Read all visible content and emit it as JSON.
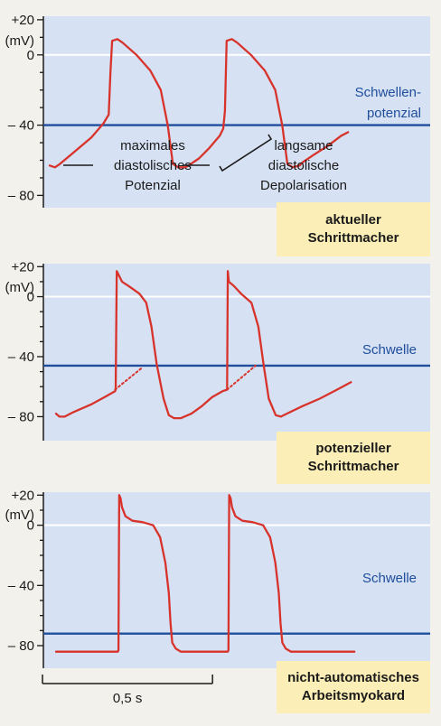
{
  "colors": {
    "panel_bg": "#d6e1f4",
    "threshold_line": "#1f4e9c",
    "trace": "#d8332b",
    "label_box": "#fbeeb6"
  },
  "chart_data": [
    {
      "type": "line",
      "unit_label": "(mV)",
      "yticks": [
        {
          "value": 20,
          "label": "+20"
        },
        {
          "value": 0,
          "label": "0"
        },
        {
          "value": -40,
          "label": "– 40"
        },
        {
          "value": -80,
          "label": "– 80"
        }
      ],
      "ylim": [
        -87,
        22
      ],
      "threshold": {
        "value": -40,
        "label_lines": [
          "Schwellen-",
          "potenzial"
        ]
      },
      "annotations": [
        {
          "text_lines": [
            "maximales",
            "diastolisches",
            "Potenzial"
          ]
        },
        {
          "text_lines": [
            "langsame",
            "diastolische",
            "Depolarisation"
          ]
        }
      ],
      "label_box": [
        "aktueller",
        "Schrittmacher"
      ],
      "series": [
        {
          "x": [
            0.0,
            0.015,
            0.03,
            0.06,
            0.12,
            0.155,
            0.17,
            0.175,
            0.18,
            0.195,
            0.21,
            0.25,
            0.29,
            0.32,
            0.34,
            0.355,
            0.37,
            0.39,
            0.4,
            0.43,
            0.46,
            0.49,
            0.5,
            0.505,
            0.51,
            0.525,
            0.54,
            0.58,
            0.62,
            0.65,
            0.67,
            0.685,
            0.7,
            0.72,
            0.73,
            0.76,
            0.8,
            0.84,
            0.86
          ],
          "y": [
            -63,
            -64,
            -62,
            -57,
            -47,
            -39,
            -34,
            -10,
            8,
            9,
            7,
            0,
            -9,
            -20,
            -40,
            -62,
            -64,
            -64,
            -63,
            -59,
            -53,
            -46,
            -42,
            -32,
            8,
            9,
            7,
            0,
            -9,
            -20,
            -40,
            -62,
            -64,
            -63,
            -61,
            -57,
            -52,
            -46,
            -44
          ]
        }
      ]
    },
    {
      "type": "line",
      "unit_label": "(mV)",
      "yticks": [
        {
          "value": 20,
          "label": "+20"
        },
        {
          "value": 0,
          "label": "0"
        },
        {
          "value": -40,
          "label": "– 40"
        },
        {
          "value": -80,
          "label": "– 80"
        }
      ],
      "ylim": [
        -96,
        22
      ],
      "threshold": {
        "value": -46,
        "label_lines": [
          "Schwelle"
        ]
      },
      "label_box": [
        "potenzieller",
        "Schrittmacher"
      ],
      "series": [
        {
          "x": [
            0.0,
            0.01,
            0.025,
            0.05,
            0.1,
            0.14,
            0.17,
            0.172,
            0.175,
            0.19,
            0.21,
            0.24,
            0.26,
            0.275,
            0.29,
            0.31,
            0.325,
            0.34,
            0.36,
            0.39,
            0.42,
            0.45,
            0.48,
            0.493,
            0.495,
            0.498,
            0.513,
            0.533,
            0.563,
            0.583,
            0.598,
            0.613,
            0.633,
            0.648,
            0.665,
            0.71,
            0.76,
            0.81,
            0.85
          ],
          "y": [
            -78,
            -80,
            -80,
            -77,
            -72,
            -67,
            -63,
            -62,
            17,
            10,
            7,
            2,
            -4,
            -20,
            -45,
            -68,
            -79,
            -81,
            -81,
            -78,
            -73,
            -67,
            -63,
            -62,
            17,
            10,
            7,
            2,
            -4,
            -20,
            -45,
            -68,
            -79,
            -80,
            -78,
            -73,
            -68,
            -62,
            -57
          ]
        },
        {
          "x": [
            0.17,
            0.25
          ],
          "y": [
            -62,
            -47
          ],
          "style": "dotted"
        },
        {
          "x": [
            0.493,
            0.575
          ],
          "y": [
            -62,
            -46
          ],
          "style": "dotted"
        }
      ]
    },
    {
      "type": "line",
      "unit_label": "(mV)",
      "yticks": [
        {
          "value": 20,
          "label": "+20"
        },
        {
          "value": 0,
          "label": "0"
        },
        {
          "value": -40,
          "label": "– 40"
        },
        {
          "value": -80,
          "label": "– 80"
        }
      ],
      "ylim": [
        -95,
        22
      ],
      "threshold": {
        "value": -72,
        "label_lines": [
          "Schwelle"
        ]
      },
      "label_box": [
        "nicht-automatisches",
        "Arbeitsmyokard"
      ],
      "scale_bar": {
        "length": 0.5,
        "label": "0,5 s"
      },
      "series": [
        {
          "x": [
            0.0,
            0.178,
            0.18,
            0.182,
            0.186,
            0.19,
            0.2,
            0.22,
            0.25,
            0.28,
            0.3,
            0.315,
            0.325,
            0.33,
            0.335,
            0.345,
            0.36,
            0.38,
            0.4,
            0.42,
            0.47,
            0.495,
            0.497,
            0.499,
            0.503,
            0.507,
            0.517,
            0.537,
            0.567,
            0.597,
            0.617,
            0.632,
            0.642,
            0.647,
            0.652,
            0.662,
            0.677,
            0.7,
            0.86
          ],
          "y": [
            -84,
            -84,
            -83,
            20,
            18,
            12,
            6,
            3,
            2,
            0,
            -8,
            -25,
            -45,
            -65,
            -78,
            -82,
            -84,
            -84,
            -84,
            -84,
            -84,
            -84,
            -83,
            20,
            18,
            12,
            6,
            3,
            2,
            0,
            -8,
            -25,
            -45,
            -65,
            -78,
            -82,
            -84,
            -84,
            -84
          ]
        }
      ]
    }
  ]
}
